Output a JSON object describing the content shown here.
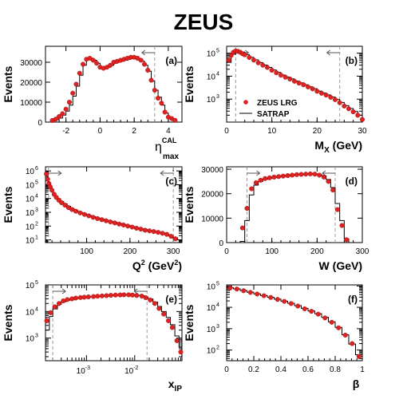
{
  "figure_title": "ZEUS",
  "legend": {
    "data_label": "ZEUS LRG",
    "mc_label": "SATRAP"
  },
  "colors": {
    "data": "#dd2222",
    "mc": "#000000",
    "cut": "#999999"
  },
  "chart_data": [
    {
      "id": "a",
      "type": "line",
      "scale": "linear",
      "ylabel": "Events",
      "xlabel": "η_max^CAL",
      "xlabel_main": "η",
      "xlabel_sup": "CAL",
      "xlabel_sub": "max",
      "xlim": [
        -3.2,
        4.8
      ],
      "ylim": [
        0,
        38000
      ],
      "xticks": [
        -2,
        0,
        2,
        4
      ],
      "xtick_labels": [
        "-2",
        "0",
        "2",
        "4"
      ],
      "yticks": [
        0,
        10000,
        20000,
        30000
      ],
      "ytick_labels": [
        "0",
        "10000",
        "20000",
        "30000"
      ],
      "cut": {
        "x": 3.2,
        "arrow_direction": "left"
      },
      "series": [
        {
          "role": "data",
          "x": [
            -2.8,
            -2.6,
            -2.4,
            -2.2,
            -2.0,
            -1.8,
            -1.6,
            -1.4,
            -1.2,
            -1.0,
            -0.8,
            -0.6,
            -0.4,
            -0.2,
            0.0,
            0.2,
            0.4,
            0.6,
            0.8,
            1.0,
            1.2,
            1.4,
            1.6,
            1.8,
            2.0,
            2.2,
            2.4,
            2.6,
            2.8,
            3.0,
            3.2,
            3.4,
            3.6,
            3.8,
            4.0,
            4.2,
            4.4
          ],
          "values": [
            800,
            1500,
            2800,
            4200,
            6500,
            10000,
            14500,
            19000,
            24500,
            29000,
            31500,
            32000,
            31000,
            29500,
            27500,
            27000,
            27500,
            28500,
            30000,
            30500,
            31000,
            31500,
            32000,
            32500,
            32500,
            32000,
            31000,
            29000,
            26000,
            21000,
            16000,
            12000,
            9500,
            5000,
            2500,
            1800,
            900
          ]
        },
        {
          "role": "mc",
          "x": [
            -3.0,
            -2.8,
            -2.6,
            -2.4,
            -2.2,
            -2.0,
            -1.8,
            -1.6,
            -1.4,
            -1.2,
            -1.0,
            -0.8,
            -0.6,
            -0.4,
            -0.2,
            0.0,
            0.2,
            0.4,
            0.6,
            0.8,
            1.0,
            1.2,
            1.4,
            1.6,
            1.8,
            2.0,
            2.2,
            2.4,
            2.6,
            2.8,
            3.0,
            3.2,
            3.4,
            3.6,
            3.8,
            4.0,
            4.2,
            4.4,
            4.6
          ],
          "values": [
            0,
            600,
            1200,
            2000,
            3500,
            5500,
            8500,
            13000,
            18000,
            23500,
            28500,
            31500,
            32000,
            31000,
            29500,
            27500,
            27000,
            27500,
            28500,
            29500,
            30000,
            30500,
            31000,
            31500,
            32000,
            32000,
            31500,
            30500,
            28500,
            25500,
            20500,
            16000,
            12500,
            8500,
            4500,
            2000,
            800,
            0,
            0
          ]
        }
      ]
    },
    {
      "id": "b",
      "type": "line",
      "scale": "log",
      "ylabel": "Events",
      "xlabel": "M_X (GeV)",
      "xlabel_main": "M",
      "xlabel_sub": "X",
      "xlabel_tail": " (GeV)",
      "xlim": [
        0,
        30
      ],
      "ylim_log": [
        2.0,
        5.3
      ],
      "xticks": [
        0,
        10,
        20,
        30
      ],
      "xtick_labels": [
        "0",
        "10",
        "20",
        "30"
      ],
      "ytick_exps": [
        3,
        4,
        5
      ],
      "ytick_labels": [
        "10",
        "10",
        "10"
      ],
      "ytick_sups": [
        "3",
        "4",
        "5"
      ],
      "cuts": [
        {
          "x": 2,
          "arrow_direction": "right"
        },
        {
          "x": 25,
          "arrow_direction": "left"
        }
      ],
      "series": [
        {
          "role": "data",
          "x": [
            0.5,
            1,
            1.5,
            2,
            2.5,
            3,
            3.5,
            4,
            5,
            6,
            7,
            8,
            9,
            10,
            11,
            12,
            13,
            14,
            15,
            16,
            17,
            18,
            19,
            20,
            21,
            22,
            23,
            24,
            25,
            26,
            27,
            28,
            29,
            30
          ],
          "values": [
            50000,
            80000,
            110000,
            125000,
            120000,
            110000,
            95000,
            85000,
            65000,
            50000,
            38000,
            30000,
            24000,
            18000,
            14000,
            11000,
            9000,
            7500,
            6000,
            5000,
            4200,
            3400,
            2800,
            2200,
            1800,
            1500,
            1200,
            950,
            700,
            500,
            380,
            280,
            200,
            130
          ]
        },
        {
          "role": "mc",
          "x": [
            0,
            1,
            2,
            3,
            4,
            5,
            6,
            7,
            8,
            9,
            10,
            11,
            12,
            13,
            14,
            15,
            16,
            17,
            18,
            19,
            20,
            21,
            22,
            23,
            24,
            25,
            26,
            27,
            28,
            29,
            30
          ],
          "values": [
            40000,
            90000,
            125000,
            112000,
            87000,
            66000,
            51000,
            39000,
            30500,
            24000,
            18500,
            14500,
            11200,
            9200,
            7600,
            6100,
            5100,
            4200,
            3450,
            2850,
            2250,
            1850,
            1520,
            1230,
            960,
            720,
            520,
            390,
            290,
            200,
            140
          ]
        }
      ]
    },
    {
      "id": "c",
      "type": "line",
      "scale": "log",
      "ylabel": "Events",
      "xlabel": "Q^2 (GeV^2)",
      "xlabel_main": "Q",
      "xlabel_sup": "2",
      "xlabel_tail": " (GeV",
      "xlabel_tail_sup": "2",
      "xlabel_end": ")",
      "xlim": [
        5,
        320
      ],
      "ylim_log": [
        0.8,
        6.3
      ],
      "xticks": [
        100,
        200,
        300
      ],
      "xtick_labels": [
        "100",
        "200",
        "300"
      ],
      "ytick_exps": [
        1,
        2,
        3,
        4,
        5,
        6
      ],
      "ytick_labels": [
        "10",
        "10",
        "10",
        "10",
        "10",
        "10"
      ],
      "ytick_sups": [
        "1",
        "2",
        "3",
        "4",
        "5",
        "6"
      ],
      "cuts": [
        {
          "x": 12,
          "arrow_direction": "right"
        },
        {
          "x": 300,
          "arrow_direction": "left"
        }
      ],
      "series": [
        {
          "role": "data",
          "x": [
            7,
            10,
            13,
            16,
            20,
            25,
            30,
            36,
            42,
            50,
            58,
            66,
            75,
            85,
            95,
            105,
            115,
            125,
            135,
            145,
            155,
            165,
            175,
            185,
            195,
            205,
            215,
            225,
            235,
            245,
            255,
            265,
            275,
            285,
            295,
            305
          ],
          "values": [
            600000,
            250000,
            120000,
            70000,
            40000,
            20000,
            12000,
            7500,
            5000,
            3300,
            2200,
            1600,
            1200,
            900,
            700,
            550,
            430,
            350,
            290,
            240,
            200,
            170,
            140,
            120,
            100,
            85,
            70,
            60,
            50,
            45,
            40,
            35,
            30,
            25,
            18,
            12
          ]
        },
        {
          "role": "mc",
          "x": [
            5,
            8,
            11,
            14,
            18,
            22,
            27,
            33,
            40,
            47,
            55,
            63,
            71,
            80,
            90,
            100,
            110,
            120,
            130,
            140,
            150,
            160,
            170,
            180,
            190,
            200,
            210,
            220,
            230,
            240,
            250,
            260,
            270,
            280,
            290,
            300,
            310
          ],
          "values": [
            900000,
            400000,
            170000,
            90000,
            50000,
            27000,
            15500,
            9500,
            6000,
            4100,
            2700,
            1900,
            1380,
            1020,
            780,
            610,
            480,
            385,
            315,
            262,
            218,
            183,
            154,
            130,
            110,
            92,
            77,
            65,
            55,
            47,
            41,
            36,
            31,
            26,
            20,
            14,
            10
          ]
        }
      ]
    },
    {
      "id": "d",
      "type": "line",
      "scale": "linear",
      "ylabel": "Events",
      "xlabel": "W (GeV)",
      "xlabel_main": "W (GeV)",
      "xlim": [
        0,
        300
      ],
      "ylim": [
        0,
        31000
      ],
      "xticks": [
        0,
        100,
        200,
        300
      ],
      "xtick_labels": [
        "0",
        "100",
        "200",
        "300"
      ],
      "yticks": [
        0,
        10000,
        20000,
        30000
      ],
      "ytick_labels": [
        "0",
        "10000",
        "20000",
        "30000"
      ],
      "cuts": [
        {
          "x": 45,
          "arrow_direction": "right"
        },
        {
          "x": 240,
          "arrow_direction": "left"
        }
      ],
      "series": [
        {
          "role": "data",
          "x": [
            35,
            45,
            55,
            65,
            75,
            85,
            95,
            105,
            115,
            125,
            135,
            145,
            155,
            165,
            175,
            185,
            195,
            205,
            215,
            225,
            235,
            245,
            255,
            265
          ],
          "values": [
            6000,
            14000,
            22000,
            24500,
            25500,
            26200,
            26500,
            26800,
            27000,
            27200,
            27400,
            27600,
            27800,
            27900,
            28000,
            28100,
            28000,
            27600,
            26800,
            25000,
            21500,
            13500,
            7000,
            1200
          ]
        },
        {
          "role": "mc",
          "x": [
            30,
            40,
            50,
            60,
            70,
            80,
            90,
            100,
            110,
            120,
            130,
            140,
            150,
            160,
            170,
            180,
            190,
            200,
            210,
            220,
            230,
            240,
            250,
            260,
            270
          ],
          "values": [
            500,
            9000,
            19500,
            23500,
            25000,
            25800,
            26300,
            26600,
            26900,
            27100,
            27300,
            27500,
            27700,
            27800,
            27900,
            28000,
            28100,
            27900,
            27300,
            25800,
            22500,
            16000,
            9000,
            1500,
            0
          ]
        }
      ]
    },
    {
      "id": "e",
      "type": "line",
      "scale": "loglog",
      "ylabel": "Events",
      "xlabel": "x_IP",
      "xlabel_main": "x",
      "xlabel_sub": "IP",
      "xlim_log": [
        -3.85,
        -1.02
      ],
      "ylim_log": [
        2.15,
        5.0
      ],
      "xtick_exps": [
        -3,
        -2
      ],
      "xtick_labels": [
        "10",
        "10"
      ],
      "xtick_sups": [
        "-3",
        "-2"
      ],
      "ytick_exps": [
        3,
        4,
        5
      ],
      "ytick_labels": [
        "10",
        "10",
        "10"
      ],
      "ytick_sups": [
        "3",
        "4",
        "5"
      ],
      "cuts": [
        {
          "x": 0.0002,
          "arrow_direction": "right"
        },
        {
          "x": 0.018,
          "arrow_direction": "left"
        }
      ],
      "series": [
        {
          "role": "data",
          "x": [
            0.00015,
            0.00018,
            0.00022,
            0.00027,
            0.00033,
            0.0004,
            0.0005,
            0.0006,
            0.00075,
            0.0009,
            0.0011,
            0.0014,
            0.0017,
            0.0021,
            0.0026,
            0.0032,
            0.004,
            0.005,
            0.006,
            0.0075,
            0.009,
            0.011,
            0.014,
            0.017,
            0.021,
            0.026,
            0.032,
            0.04,
            0.05,
            0.06,
            0.075,
            0.09
          ],
          "values": [
            4500,
            9000,
            15000,
            20000,
            25000,
            28000,
            30000,
            32000,
            33500,
            34500,
            35500,
            36500,
            37500,
            38500,
            39500,
            40500,
            41500,
            42000,
            42500,
            42500,
            41500,
            40000,
            38000,
            33000,
            27000,
            20000,
            13000,
            8000,
            4500,
            2500,
            800,
            300
          ]
        },
        {
          "role": "mc",
          "x": [
            0.00014,
            0.00017,
            0.0002,
            0.00025,
            0.0003,
            0.00037,
            0.00045,
            0.00055,
            0.00068,
            0.00083,
            0.001,
            0.0013,
            0.0016,
            0.0019,
            0.0024,
            0.003,
            0.0036,
            0.0045,
            0.0055,
            0.0068,
            0.0083,
            0.01,
            0.013,
            0.016,
            0.019,
            0.024,
            0.03,
            0.036,
            0.045,
            0.055,
            0.068,
            0.083,
            0.095
          ],
          "values": [
            2000,
            6500,
            12500,
            18500,
            23000,
            26500,
            29000,
            31000,
            32500,
            33800,
            34800,
            36000,
            37000,
            38000,
            39000,
            40000,
            41000,
            41800,
            42300,
            42600,
            42000,
            40800,
            39000,
            35000,
            29500,
            22500,
            15500,
            10000,
            6000,
            3200,
            1200,
            450,
            200
          ]
        }
      ]
    },
    {
      "id": "f",
      "type": "line",
      "scale": "log",
      "ylabel": "Events",
      "xlabel": "β",
      "xlabel_main": "β",
      "xlim": [
        0,
        1
      ],
      "ylim_log": [
        1.5,
        5.05
      ],
      "xticks": [
        0,
        0.2,
        0.4,
        0.6,
        0.8,
        1
      ],
      "xtick_labels": [
        "0",
        "0.2",
        "0.4",
        "0.6",
        "0.8",
        "1"
      ],
      "ytick_exps": [
        2,
        3,
        4,
        5
      ],
      "ytick_labels": [
        "10",
        "10",
        "10",
        "10"
      ],
      "ytick_sups": [
        "2",
        "3",
        "4",
        "5"
      ],
      "series": [
        {
          "role": "data",
          "x": [
            0.025,
            0.075,
            0.125,
            0.175,
            0.225,
            0.275,
            0.325,
            0.375,
            0.425,
            0.475,
            0.525,
            0.575,
            0.625,
            0.675,
            0.725,
            0.775,
            0.825,
            0.875,
            0.925,
            0.975
          ],
          "values": [
            80000,
            72000,
            60000,
            50000,
            42000,
            35000,
            29000,
            23500,
            19000,
            15000,
            11500,
            8500,
            6500,
            4800,
            3200,
            2000,
            1100,
            500,
            200,
            50
          ]
        },
        {
          "role": "mc",
          "x": [
            0,
            0.05,
            0.1,
            0.15,
            0.2,
            0.25,
            0.3,
            0.35,
            0.4,
            0.45,
            0.5,
            0.55,
            0.6,
            0.65,
            0.7,
            0.75,
            0.8,
            0.85,
            0.9,
            0.95
          ],
          "values": [
            82000,
            73000,
            61000,
            51000,
            42500,
            35500,
            29500,
            24000,
            19500,
            15500,
            12000,
            9000,
            6800,
            5000,
            3400,
            2100,
            1150,
            520,
            190,
            60
          ]
        }
      ]
    }
  ]
}
